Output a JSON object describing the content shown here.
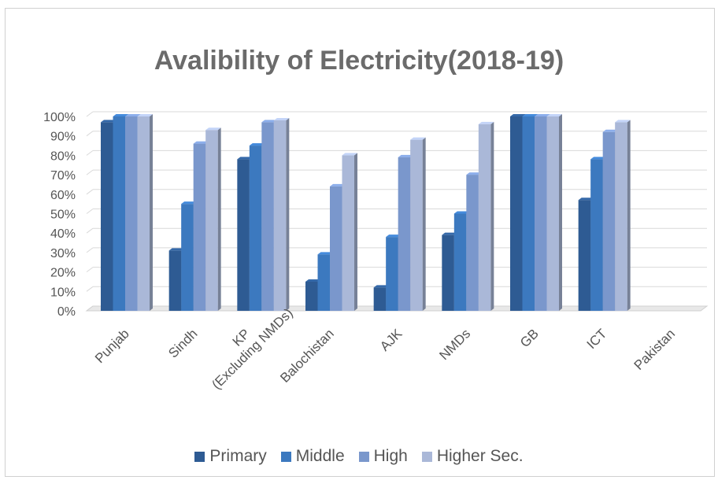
{
  "chart_data": {
    "type": "bar",
    "title": "Avalibility of Electricity(2018-19)",
    "categories": [
      "Punjab",
      "Sindh",
      "KP\n(Excluding NMDs)",
      "Balochistan",
      "AJK",
      "NMDs",
      "GB",
      "ICT",
      "Pakistan"
    ],
    "series": [
      {
        "name": "Primary",
        "color": "#2e5b93",
        "values": [
          97,
          31,
          78,
          15,
          12,
          39,
          100,
          57,
          null
        ]
      },
      {
        "name": "Middle",
        "color": "#3c79bf",
        "values": [
          100,
          55,
          85,
          29,
          38,
          50,
          100,
          78,
          null
        ]
      },
      {
        "name": "High",
        "color": "#7a97cc",
        "values": [
          100,
          86,
          97,
          64,
          79,
          70,
          100,
          92,
          null
        ]
      },
      {
        "name": "Higher Sec.",
        "color": "#aab8d8",
        "values": [
          100,
          93,
          98,
          80,
          88,
          96,
          100,
          97,
          null
        ]
      }
    ],
    "yticks": [
      "0%",
      "10%",
      "20%",
      "30%",
      "40%",
      "50%",
      "60%",
      "70%",
      "80%",
      "90%",
      "100%"
    ],
    "ylim": [
      0,
      100
    ],
    "grid": true,
    "legend_position": "bottom"
  }
}
